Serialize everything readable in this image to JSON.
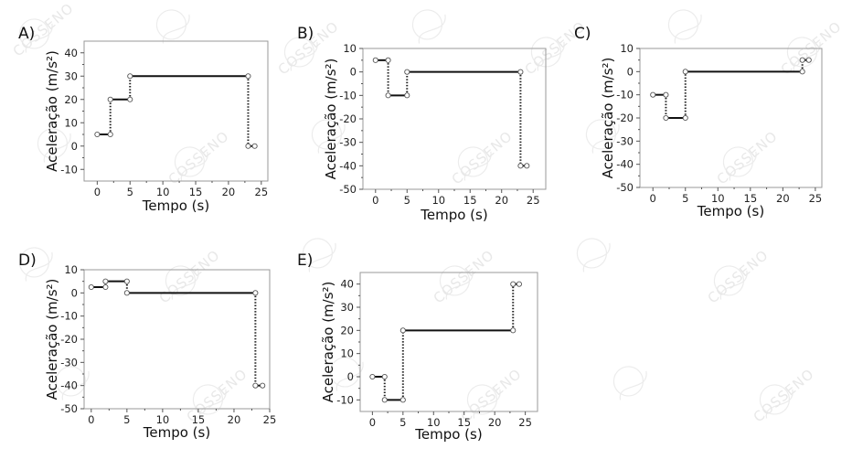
{
  "chart_data": [
    {
      "label": "A)",
      "type": "line",
      "xlabel": "Tempo (s)",
      "ylabel": "Aceleração (m/s²)",
      "xlim": [
        -2,
        26
      ],
      "ylim": [
        -15,
        45
      ],
      "xticks": [
        0,
        5,
        10,
        15,
        20,
        25
      ],
      "yticks": [
        -10,
        0,
        10,
        20,
        30,
        40
      ],
      "segments": [
        [
          0,
          2,
          5
        ],
        [
          2,
          5,
          20
        ],
        [
          5,
          23,
          30
        ],
        [
          23,
          24,
          0
        ]
      ],
      "jumps": [
        [
          2,
          5,
          20
        ],
        [
          5,
          20,
          30
        ],
        [
          23,
          30,
          0
        ]
      ]
    },
    {
      "label": "B)",
      "type": "line",
      "xlabel": "Tempo (s)",
      "ylabel": "Aceleração (m/s²)",
      "xlim": [
        -2,
        27
      ],
      "ylim": [
        -50,
        10
      ],
      "xticks": [
        0,
        5,
        10,
        15,
        20,
        25
      ],
      "yticks": [
        -50,
        -40,
        -30,
        -20,
        -10,
        0,
        10
      ],
      "segments": [
        [
          0,
          2,
          5
        ],
        [
          2,
          5,
          -10
        ],
        [
          5,
          23,
          0
        ],
        [
          23,
          24,
          -40
        ]
      ],
      "jumps": [
        [
          2,
          5,
          -10
        ],
        [
          5,
          -10,
          0
        ],
        [
          23,
          0,
          -40
        ]
      ]
    },
    {
      "label": "C)",
      "type": "line",
      "xlabel": "Tempo (s)",
      "ylabel": "Aceleração (m/s²)",
      "xlim": [
        -2,
        26
      ],
      "ylim": [
        -50,
        10
      ],
      "xticks": [
        0,
        5,
        10,
        15,
        20,
        25
      ],
      "yticks": [
        -50,
        -40,
        -30,
        -20,
        -10,
        0,
        10
      ],
      "segments": [
        [
          0,
          2,
          -10
        ],
        [
          2,
          5,
          -20
        ],
        [
          5,
          23,
          0
        ],
        [
          23,
          24,
          5
        ]
      ],
      "jumps": [
        [
          2,
          -10,
          -20
        ],
        [
          5,
          -20,
          0
        ],
        [
          23,
          0,
          5
        ]
      ]
    },
    {
      "label": "D)",
      "type": "line",
      "xlabel": "Tempo (s)",
      "ylabel": "Aceleração (m/s²)",
      "xlim": [
        -1,
        25
      ],
      "ylim": [
        -50,
        10
      ],
      "xticks": [
        0,
        5,
        10,
        15,
        20,
        25
      ],
      "yticks": [
        -50,
        -40,
        -30,
        -20,
        -10,
        0,
        10
      ],
      "segments": [
        [
          0,
          2,
          2.5
        ],
        [
          2,
          5,
          5
        ],
        [
          5,
          23,
          0
        ],
        [
          23,
          24,
          -40
        ]
      ],
      "jumps": [
        [
          2,
          2.5,
          5
        ],
        [
          5,
          5,
          0
        ],
        [
          23,
          0,
          -40
        ]
      ]
    },
    {
      "label": "E)",
      "type": "line",
      "xlabel": "Tempo (s)",
      "ylabel": "Aceleração (m/s²)",
      "xlim": [
        -2,
        27
      ],
      "ylim": [
        -15,
        45
      ],
      "xticks": [
        0,
        5,
        10,
        15,
        20,
        25
      ],
      "yticks": [
        -10,
        0,
        10,
        20,
        30,
        40
      ],
      "segments": [
        [
          0,
          2,
          0
        ],
        [
          2,
          5,
          -10
        ],
        [
          5,
          23,
          20
        ],
        [
          23,
          24,
          40
        ]
      ],
      "jumps": [
        [
          2,
          0,
          -10
        ],
        [
          5,
          -10,
          20
        ],
        [
          23,
          20,
          40
        ]
      ]
    }
  ],
  "watermark": "COSSENO"
}
